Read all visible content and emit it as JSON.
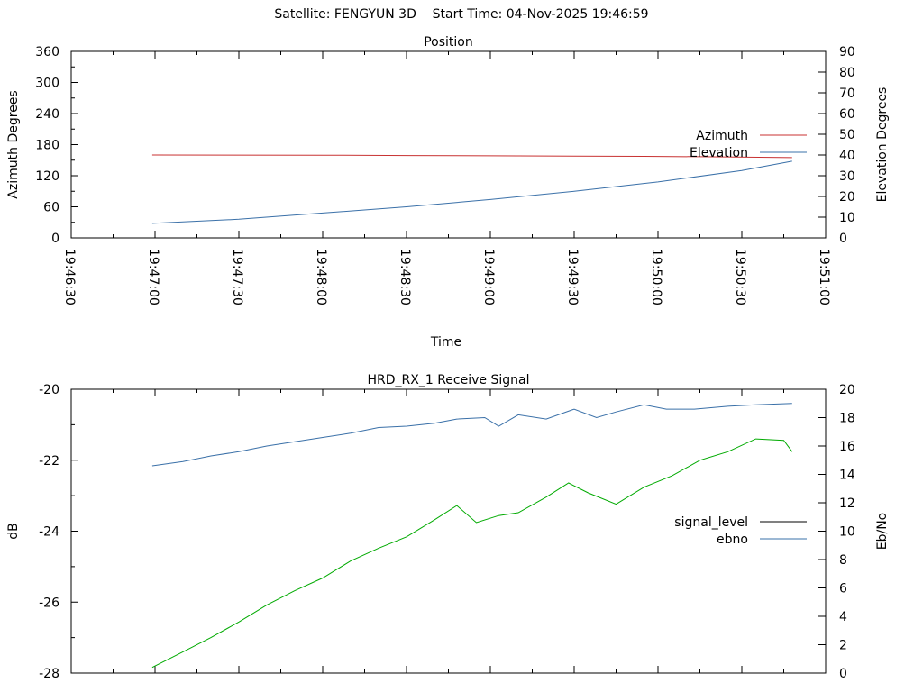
{
  "header": {
    "title": "Satellite: FENGYUN 3D    Start Time: 04-Nov-2025 19:46:59"
  },
  "chart_data": [
    {
      "type": "line",
      "title": "Position",
      "xlabel": "Time",
      "ylabel": "Azimuth Degrees",
      "y2label": "Elevation Degrees",
      "x_ticks": [
        "19:46:30",
        "19:47:00",
        "19:47:30",
        "19:48:00",
        "19:48:30",
        "19:49:00",
        "19:49:30",
        "19:50:00",
        "19:50:30",
        "19:51:00"
      ],
      "xlim": [
        "19:46:30",
        "19:51:00"
      ],
      "ylim": [
        0,
        360
      ],
      "y_ticks": [
        0,
        60,
        120,
        180,
        240,
        300,
        360
      ],
      "y2lim": [
        0,
        90
      ],
      "y2_ticks": [
        0,
        10,
        20,
        30,
        40,
        50,
        60,
        70,
        80,
        90
      ],
      "legend_position": "right",
      "grid": false,
      "series": [
        {
          "name": "Azimuth",
          "axis": "y",
          "color": "#c83232",
          "x": [
            "19:46:59",
            "19:48:00",
            "19:48:31",
            "19:49:00",
            "19:49:30",
            "19:49:55",
            "19:50:20",
            "19:50:48"
          ],
          "y": [
            160,
            159.6,
            159,
            158.4,
            158,
            157.4,
            156.6,
            155
          ]
        },
        {
          "name": "Elevation",
          "axis": "y2",
          "color": "#3a70a8",
          "x": [
            "19:46:59",
            "19:47:30",
            "19:48:00",
            "19:48:30",
            "19:49:00",
            "19:49:30",
            "19:50:00",
            "19:50:30",
            "19:50:48"
          ],
          "y": [
            7,
            9,
            12,
            15,
            18.5,
            22.5,
            27,
            32.5,
            37
          ]
        }
      ]
    },
    {
      "type": "line",
      "title": "HRD_RX_1 Receive Signal",
      "ylabel": "dB",
      "y2label": "Eb/No",
      "ylim": [
        -28,
        -20
      ],
      "y_ticks": [
        -28,
        -26,
        -24,
        -22,
        -20
      ],
      "y2lim": [
        0,
        20
      ],
      "y2_ticks": [
        0,
        2,
        4,
        6,
        8,
        10,
        12,
        14,
        16,
        18,
        20
      ],
      "legend_position": "right",
      "grid": false,
      "series": [
        {
          "name": "signal_level",
          "axis": "y",
          "color": "#000000",
          "x": [],
          "y": []
        },
        {
          "name": "ebno",
          "axis": "y2",
          "color": "#3a70a8",
          "x": [
            "19:46:59",
            "19:47:10",
            "19:47:20",
            "19:47:30",
            "19:47:40",
            "19:47:50",
            "19:48:00",
            "19:48:10",
            "19:48:20",
            "19:48:30",
            "19:48:40",
            "19:48:48",
            "19:48:58",
            "19:49:03",
            "19:49:10",
            "19:49:20",
            "19:49:30",
            "19:49:38",
            "19:49:45",
            "19:49:55",
            "19:50:03",
            "19:50:13",
            "19:50:25",
            "19:50:35",
            "19:50:48"
          ],
          "y": [
            14.6,
            14.9,
            15.3,
            15.6,
            16.0,
            16.3,
            16.6,
            16.9,
            17.3,
            17.4,
            17.6,
            17.9,
            18.0,
            17.4,
            18.2,
            17.9,
            18.6,
            18.0,
            18.4,
            18.9,
            18.6,
            18.6,
            18.8,
            18.9,
            19.0
          ]
        },
        {
          "name": "",
          "axis": "y2",
          "color": "#00aa00",
          "x": [
            "19:46:59",
            "19:47:10",
            "19:47:20",
            "19:47:30",
            "19:47:40",
            "19:47:50",
            "19:48:00",
            "19:48:10",
            "19:48:20",
            "19:48:30",
            "19:48:40",
            "19:48:48",
            "19:48:55",
            "19:49:03",
            "19:49:10",
            "19:49:20",
            "19:49:28",
            "19:49:35",
            "19:49:45",
            "19:49:55",
            "19:50:05",
            "19:50:15",
            "19:50:25",
            "19:50:35",
            "19:50:45",
            "19:50:48"
          ],
          "y": [
            0.4,
            1.5,
            2.5,
            3.6,
            4.8,
            5.8,
            6.7,
            7.9,
            8.8,
            9.6,
            10.8,
            11.8,
            10.6,
            11.1,
            11.3,
            12.4,
            13.4,
            12.7,
            11.9,
            13.1,
            13.9,
            15.0,
            15.6,
            16.5,
            16.4,
            15.6
          ]
        }
      ]
    }
  ]
}
